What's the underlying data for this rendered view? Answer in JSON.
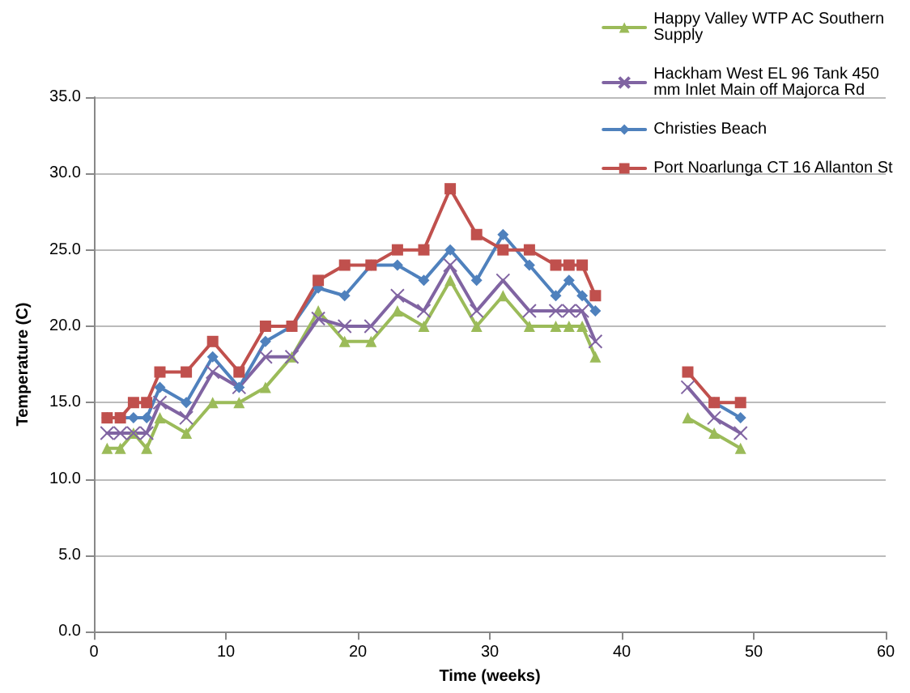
{
  "chart_data": {
    "type": "line",
    "xlabel": "Time (weeks)",
    "ylabel": "Temperature (C)",
    "x": [
      1,
      2,
      3,
      4,
      5,
      7,
      9,
      11,
      13,
      15,
      17,
      19,
      21,
      23,
      25,
      27,
      29,
      31,
      33,
      35,
      36,
      37,
      38,
      41,
      45,
      47,
      49
    ],
    "series": [
      {
        "name": "Happy Valley WTP AC Southern Supply",
        "color": "#9bbb59",
        "marker": "triangle",
        "values": [
          12,
          12,
          13,
          12,
          14,
          13,
          15,
          15,
          16,
          18,
          21,
          19,
          19,
          21,
          20,
          23,
          20,
          22,
          20,
          20,
          20,
          20,
          18,
          null,
          14,
          13,
          12
        ]
      },
      {
        "name": "Hackham West EL 96 Tank 450 mm Inlet Main off Majorca Rd",
        "color": "#8064a2",
        "marker": "cross",
        "values": [
          13,
          13,
          13,
          13,
          15,
          14,
          17,
          16,
          18,
          18,
          20.5,
          20,
          20,
          22,
          21,
          24,
          21,
          23,
          21,
          21,
          21,
          21,
          19,
          null,
          16,
          14,
          13
        ]
      },
      {
        "name": "Christies Beach",
        "color": "#4f81bd",
        "marker": "diamond",
        "values": [
          14,
          14,
          14,
          14,
          16,
          15,
          18,
          16,
          19,
          20,
          22.5,
          22,
          24,
          24,
          23,
          25,
          23,
          26,
          24,
          22,
          23,
          22,
          21,
          null,
          null,
          15,
          14
        ]
      },
      {
        "name": "Port Noarlunga CT 16 Allanton St",
        "color": "#c0504d",
        "marker": "square",
        "values": [
          14,
          14,
          15,
          15,
          17,
          17,
          19,
          17,
          20,
          20,
          23,
          24,
          24,
          25,
          25,
          29,
          26,
          25,
          25,
          24,
          24,
          24,
          22,
          null,
          17,
          15,
          15
        ]
      }
    ],
    "xlim": [
      0,
      60
    ],
    "xticks": [
      0,
      10,
      20,
      30,
      40,
      50,
      60
    ],
    "ylim": [
      0,
      35
    ],
    "yticks": [
      {
        "value": 0,
        "label": "0.0"
      },
      {
        "value": 5,
        "label": "5.0"
      },
      {
        "value": 10,
        "label": "10.0"
      },
      {
        "value": 15,
        "label": "15.0"
      },
      {
        "value": 20,
        "label": "20.0"
      },
      {
        "value": 25,
        "label": "25.0"
      },
      {
        "value": 30,
        "label": "30.0"
      },
      {
        "value": 35,
        "label": "35.0"
      }
    ],
    "grid": "y",
    "legend": "top right",
    "line_style": "solid"
  }
}
